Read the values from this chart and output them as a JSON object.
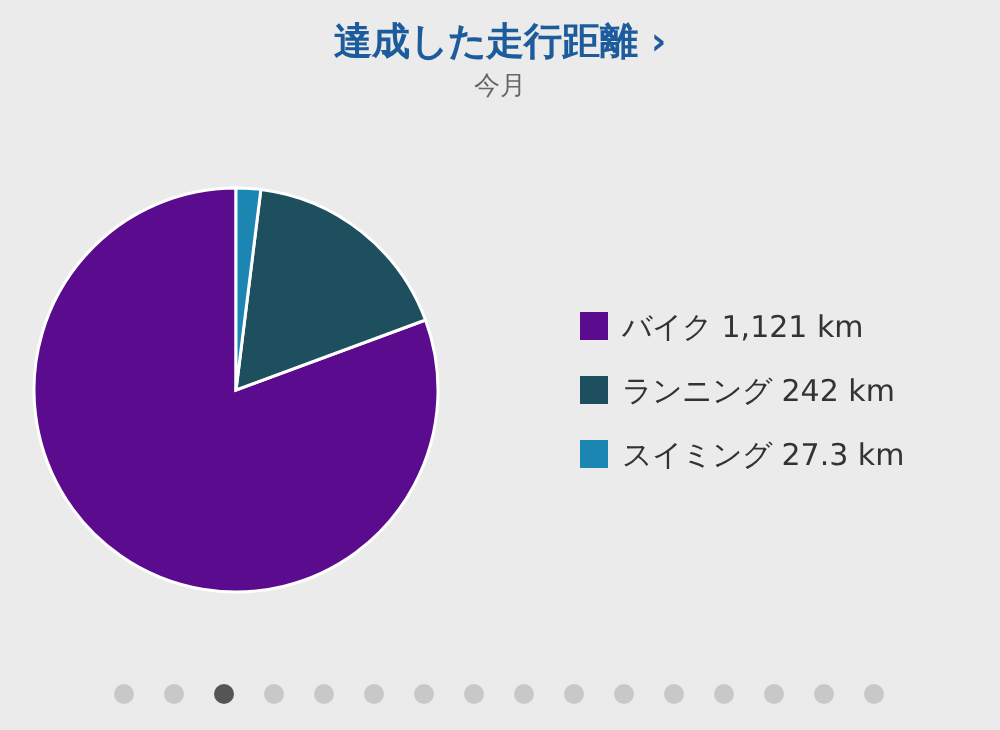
{
  "chart_data": {
    "type": "pie",
    "title": "達成した走行距離 ›",
    "subtitle": "今月",
    "legend": "right",
    "categories": [
      "バイク",
      "ランニング",
      "スイミング"
    ],
    "values": [
      1121,
      242,
      27.3
    ],
    "value_labels": [
      "1,121 km",
      "242 km",
      "27.3 km"
    ],
    "colors": [
      "#5b0b8e",
      "#1d4f5f",
      "#1b86b2"
    ]
  }
}
